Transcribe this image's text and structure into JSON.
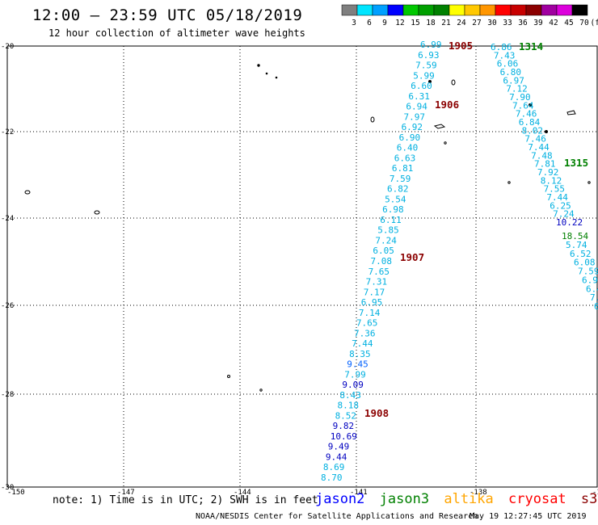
{
  "header": {
    "title": "12:00 – 23:59 UTC 05/18/2019",
    "subtitle": "12 hour collection of altimeter wave heights"
  },
  "colorbar": {
    "labels": [
      "3",
      "6",
      "9",
      "12",
      "15",
      "18",
      "21",
      "24",
      "27",
      "30",
      "33",
      "36",
      "39",
      "42",
      "45",
      "70",
      "(ft)"
    ],
    "colors": [
      "#7f7f7f",
      "#00e5ff",
      "#00a0ff",
      "#0000ff",
      "#00c800",
      "#00a000",
      "#008000",
      "#ffff00",
      "#ffc800",
      "#ff9600",
      "#ff0000",
      "#c80000",
      "#8b0000",
      "#a000a0",
      "#dc00dc",
      "#000000"
    ]
  },
  "axes": {
    "lat_labels": [
      "-20",
      "-22",
      "-24",
      "-26",
      "-28",
      "-30"
    ],
    "lon_labels": [
      "-150",
      "-147",
      "-144",
      "-141",
      "-138",
      "-135"
    ]
  },
  "passes": [
    {
      "id": "1905",
      "color": "#8b0000"
    },
    {
      "id": "1906",
      "color": "#8b0000"
    },
    {
      "id": "1907",
      "color": "#8b0000"
    },
    {
      "id": "1908",
      "color": "#8b0000"
    },
    {
      "id": "1314",
      "color": "#008000"
    },
    {
      "id": "1315",
      "color": "#008000"
    }
  ],
  "track_a": [
    {
      "v": "6.99",
      "c": "#00b0e0"
    },
    {
      "v": "6.93",
      "c": "#00b0e0"
    },
    {
      "v": "7.59",
      "c": "#00b0e0"
    },
    {
      "v": "5.99",
      "c": "#00b0e0"
    },
    {
      "v": "6.60",
      "c": "#00b0e0"
    },
    {
      "v": "6.31",
      "c": "#00b0e0"
    },
    {
      "v": "6.94",
      "c": "#00b0e0"
    },
    {
      "v": "7.97",
      "c": "#00b0e0"
    },
    {
      "v": "6.92",
      "c": "#00b0e0"
    },
    {
      "v": "6.90",
      "c": "#00b0e0"
    },
    {
      "v": "6.40",
      "c": "#00b0e0"
    },
    {
      "v": "6.63",
      "c": "#00b0e0"
    },
    {
      "v": "6.81",
      "c": "#00b0e0"
    },
    {
      "v": "7.59",
      "c": "#00b0e0"
    },
    {
      "v": "6.82",
      "c": "#00b0e0"
    },
    {
      "v": "5.54",
      "c": "#00b0e0"
    },
    {
      "v": "6.98",
      "c": "#00b0e0"
    },
    {
      "v": "6.11",
      "c": "#00b0e0"
    },
    {
      "v": "5.85",
      "c": "#00b0e0"
    },
    {
      "v": "7.24",
      "c": "#00b0e0"
    },
    {
      "v": "6.05",
      "c": "#00b0e0"
    },
    {
      "v": "7.08",
      "c": "#00b0e0"
    },
    {
      "v": "7.65",
      "c": "#00b0e0"
    },
    {
      "v": "7.31",
      "c": "#00b0e0"
    },
    {
      "v": "7.17",
      "c": "#00b0e0"
    },
    {
      "v": "6.95",
      "c": "#00b0e0"
    },
    {
      "v": "7.14",
      "c": "#00b0e0"
    },
    {
      "v": "7.65",
      "c": "#00b0e0"
    },
    {
      "v": "7.36",
      "c": "#00b0e0"
    },
    {
      "v": "7.44",
      "c": "#00b0e0"
    },
    {
      "v": "8.35",
      "c": "#00b0e0"
    },
    {
      "v": "9.45",
      "c": "#0060ff"
    },
    {
      "v": "7.99",
      "c": "#00b0e0"
    },
    {
      "v": "9.09",
      "c": "#0000c0"
    },
    {
      "v": "8.43",
      "c": "#00b0e0"
    },
    {
      "v": "8.18",
      "c": "#00b0e0"
    },
    {
      "v": "8.52",
      "c": "#00b0e0"
    },
    {
      "v": "9.82",
      "c": "#0000c0"
    },
    {
      "v": "10.69",
      "c": "#0000c0"
    },
    {
      "v": "9.49",
      "c": "#0000c0"
    },
    {
      "v": "9.44",
      "c": "#0000c0"
    },
    {
      "v": "8.69",
      "c": "#00b0e0"
    },
    {
      "v": "8.70",
      "c": "#00b0e0"
    }
  ],
  "track_b": [
    {
      "v": "6.86",
      "c": "#00b0e0"
    },
    {
      "v": "7.43",
      "c": "#00b0e0"
    },
    {
      "v": "6.06",
      "c": "#00b0e0"
    },
    {
      "v": "6.80",
      "c": "#00b0e0"
    },
    {
      "v": "6.97",
      "c": "#00b0e0"
    },
    {
      "v": "7.12",
      "c": "#00b0e0"
    },
    {
      "v": "7.90",
      "c": "#00b0e0"
    },
    {
      "v": "7.64",
      "c": "#00b0e0"
    },
    {
      "v": "7.46",
      "c": "#00b0e0"
    },
    {
      "v": "6.84",
      "c": "#00b0e0"
    },
    {
      "v": "8.02",
      "c": "#00b0e0"
    },
    {
      "v": "7.46",
      "c": "#00b0e0"
    },
    {
      "v": "7.44",
      "c": "#00b0e0"
    },
    {
      "v": "7.48",
      "c": "#00b0e0"
    },
    {
      "v": "7.81",
      "c": "#00b0e0"
    },
    {
      "v": "7.92",
      "c": "#00b0e0"
    },
    {
      "v": "8.12",
      "c": "#00b0e0"
    },
    {
      "v": "7.55",
      "c": "#00b0e0"
    },
    {
      "v": "7.44",
      "c": "#00b0e0"
    },
    {
      "v": "6.25",
      "c": "#00b0e0"
    },
    {
      "v": "7.24",
      "c": "#00b0e0"
    },
    {
      "v": "10.22",
      "c": "#0000c0"
    }
  ],
  "track_c": [
    {
      "v": "18.54",
      "c": "#008000"
    },
    {
      "v": "5.74",
      "c": "#00b0e0"
    },
    {
      "v": "6.52",
      "c": "#00b0e0"
    },
    {
      "v": "6.08",
      "c": "#00b0e0"
    },
    {
      "v": "7.59",
      "c": "#00b0e0"
    },
    {
      "v": "6.9",
      "c": "#00b0e0"
    },
    {
      "v": "6.4",
      "c": "#00b0e0"
    },
    {
      "v": "7.",
      "c": "#00b0e0"
    },
    {
      "v": "6",
      "c": "#00b0e0"
    }
  ],
  "legend": {
    "jason2": {
      "label": "jason2",
      "color": "#0000ff"
    },
    "jason3": {
      "label": "jason3",
      "color": "#008000"
    },
    "altika": {
      "label": "altika",
      "color": "#ffa500"
    },
    "cryosat": {
      "label": "cryosat",
      "color": "#ff0000"
    },
    "s3a": {
      "label": "s3a",
      "color": "#8b0000"
    }
  },
  "footer": {
    "note": "note: 1) Time is in UTC; 2) SWH is in feet",
    "credit": "NOAA/NESDIS Center for Satellite Applications and Research",
    "timestamp": "May 19 12:27:45 UTC 2019"
  }
}
